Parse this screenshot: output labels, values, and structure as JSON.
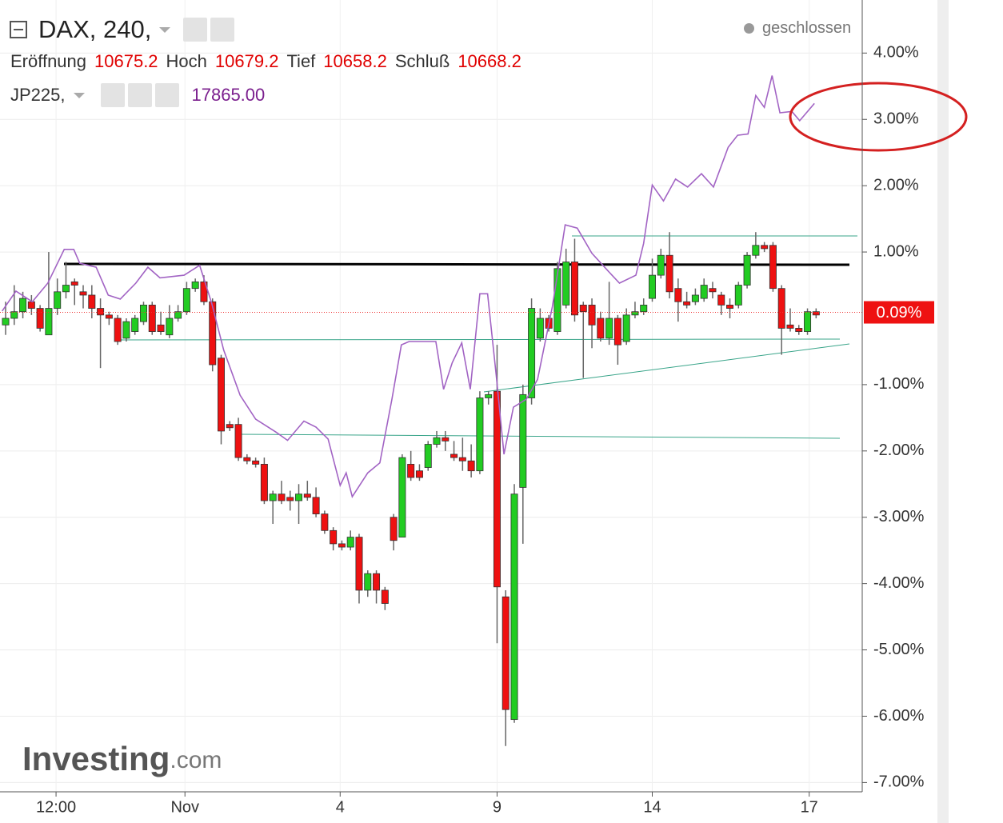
{
  "chart_data": {
    "type": "candlestick",
    "title": "DAX, 240,",
    "ohlc": [
      {
        "label": "Eröffnung",
        "value": 10675.2
      },
      {
        "label": "Hoch",
        "value": 10679.2
      },
      {
        "label": "Tief",
        "value": 10658.2
      },
      {
        "label": "Schluß",
        "value": 10668.2
      }
    ],
    "compare_value": {
      "value": 17865,
      "label": "17865.00"
    },
    "status": "geschlossen",
    "watermark": {
      "brand": "Investing",
      "suffix": ".com"
    },
    "last": {
      "value": 0.09,
      "label": "0.09%"
    },
    "grid": true,
    "ylim": [
      -7.14,
      4.8
    ],
    "yticks": [
      {
        "value": 4,
        "label": "4.00%"
      },
      {
        "value": 3,
        "label": "3.00%"
      },
      {
        "value": 2,
        "label": "2.00%"
      },
      {
        "value": 1,
        "label": "1.00%"
      },
      {
        "value": -1,
        "label": "-1.00%"
      },
      {
        "value": -2,
        "label": "-2.00%"
      },
      {
        "value": -3,
        "label": "-3.00%"
      },
      {
        "value": -4,
        "label": "-4.00%"
      },
      {
        "value": -5,
        "label": "-5.00%"
      },
      {
        "value": -6,
        "label": "-6.00%"
      },
      {
        "value": -7,
        "label": "-7.00%"
      }
    ],
    "xlim": [
      -0.65,
      99.35
    ],
    "xticks": [
      {
        "value": 5.85,
        "label": "12:00"
      },
      {
        "value": 20.8,
        "label": "Nov"
      },
      {
        "value": 38.8,
        "label": "4"
      },
      {
        "value": 57,
        "label": "9"
      },
      {
        "value": 75,
        "label": "14"
      },
      {
        "value": 93.2,
        "label": "17"
      }
    ],
    "series": [
      {
        "color_up": "#22cc22",
        "color_down": "#ee1111",
        "open": [
          -0.1,
          0.0,
          0.1,
          0.25,
          0.15,
          -0.25,
          0.15,
          0.4,
          0.55,
          0.4,
          0.35,
          0.15,
          0.05,
          0.0,
          -0.3,
          -0.2,
          -0.05,
          0.2,
          -0.1,
          -0.25,
          0.0,
          0.1,
          0.45,
          0.55,
          0.25,
          -0.6,
          -1.6,
          -1.6,
          -2.1,
          -2.15,
          -2.2,
          -2.75,
          -2.65,
          -2.7,
          -2.75,
          -2.65,
          -2.7,
          -2.95,
          -3.2,
          -3.4,
          -3.45,
          -3.3,
          -4.1,
          -3.85,
          -4.1,
          -3.0,
          -3.3,
          -2.2,
          -2.3,
          -2.25,
          -1.9,
          -1.8,
          -2.05,
          -2.1,
          -2.15,
          -2.3,
          -1.2,
          -1.1,
          -4.2,
          -6.05,
          -2.55,
          -1.2,
          -0.3,
          0.0,
          -0.2,
          0.2,
          0.85,
          0.2,
          0.2,
          0.0,
          -0.3,
          0.0,
          -0.35,
          0.05,
          0.1,
          0.3,
          0.65,
          0.95,
          0.45,
          0.25,
          0.25,
          0.3,
          0.45,
          0.35,
          0.2,
          0.2,
          0.5,
          0.95,
          1.1,
          1.1,
          0.45,
          -0.1,
          -0.15,
          -0.2,
          0.1
        ],
        "high": [
          0.25,
          0.5,
          0.4,
          0.35,
          0.2,
          1.0,
          0.6,
          0.85,
          0.6,
          0.5,
          0.5,
          0.3,
          0.1,
          0.05,
          0.0,
          0.05,
          0.25,
          0.25,
          0.1,
          0.2,
          0.2,
          0.55,
          0.6,
          0.65,
          0.3,
          -0.55,
          -1.55,
          -1.5,
          -2.05,
          -2.1,
          -2.1,
          -2.6,
          -2.45,
          -2.6,
          -2.5,
          -2.45,
          -2.55,
          -2.9,
          -3.15,
          -3.35,
          -3.2,
          -3.25,
          -3.8,
          -3.8,
          -4.05,
          -2.95,
          -2.05,
          -2.0,
          -2.2,
          -1.85,
          -1.7,
          -1.7,
          -1.85,
          -1.8,
          -1.9,
          -1.1,
          -1.1,
          -0.4,
          -4.1,
          -2.5,
          -1.0,
          0.3,
          0.15,
          0.05,
          0.85,
          1.05,
          1.2,
          0.25,
          0.3,
          0.1,
          0.55,
          0.05,
          0.15,
          0.25,
          0.3,
          0.9,
          1.05,
          1.3,
          0.6,
          0.4,
          0.45,
          0.6,
          0.55,
          0.4,
          0.3,
          0.55,
          1.0,
          1.3,
          1.15,
          1.15,
          0.5,
          0.15,
          -0.1,
          0.15,
          0.15
        ],
        "low": [
          -0.25,
          -0.1,
          0.0,
          0.05,
          -0.2,
          -0.25,
          0.05,
          0.3,
          0.2,
          0.15,
          0.0,
          -0.75,
          -0.1,
          -0.4,
          -0.35,
          -0.25,
          -0.1,
          -0.25,
          -0.25,
          -0.3,
          -0.05,
          0.05,
          0.4,
          0.2,
          -0.8,
          -1.9,
          -1.7,
          -2.15,
          -2.2,
          -2.25,
          -2.8,
          -3.1,
          -2.8,
          -2.9,
          -3.1,
          -2.75,
          -3.0,
          -3.25,
          -3.5,
          -3.5,
          -3.5,
          -4.3,
          -4.2,
          -4.3,
          -4.4,
          -3.5,
          -3.3,
          -2.45,
          -2.45,
          -2.3,
          -1.95,
          -2.0,
          -2.15,
          -2.3,
          -2.4,
          -2.35,
          -1.3,
          -4.9,
          -6.45,
          -6.1,
          -3.4,
          -1.3,
          -0.35,
          -0.2,
          -0.25,
          0.15,
          -0.05,
          -0.9,
          -0.45,
          -0.35,
          -0.4,
          -0.7,
          -0.4,
          0.0,
          0.05,
          0.25,
          0.6,
          0.3,
          -0.05,
          0.15,
          0.2,
          0.25,
          0.3,
          0.05,
          0.0,
          0.15,
          0.45,
          0.9,
          1.0,
          0.4,
          -0.55,
          -0.2,
          -0.25,
          -0.25,
          0.0
        ],
        "close": [
          0.0,
          0.1,
          0.3,
          0.15,
          -0.15,
          0.15,
          0.4,
          0.5,
          0.5,
          0.35,
          0.15,
          0.05,
          0.0,
          -0.35,
          -0.05,
          0.0,
          0.2,
          -0.2,
          -0.2,
          0.0,
          0.1,
          0.45,
          0.55,
          0.25,
          -0.7,
          -1.7,
          -1.65,
          -2.1,
          -2.15,
          -2.2,
          -2.75,
          -2.65,
          -2.75,
          -2.75,
          -2.65,
          -2.7,
          -2.95,
          -3.2,
          -3.4,
          -3.45,
          -3.3,
          -4.1,
          -3.85,
          -4.1,
          -4.3,
          -3.35,
          -2.1,
          -2.4,
          -2.4,
          -1.9,
          -1.8,
          -1.85,
          -2.1,
          -2.15,
          -2.3,
          -1.2,
          -1.15,
          -4.05,
          -5.9,
          -2.65,
          -1.15,
          0.15,
          0.0,
          -0.15,
          0.75,
          0.85,
          0.05,
          0.1,
          -0.1,
          -0.3,
          0.0,
          -0.4,
          0.05,
          0.1,
          0.2,
          0.65,
          0.95,
          0.4,
          0.25,
          0.2,
          0.35,
          0.5,
          0.4,
          0.2,
          0.15,
          0.5,
          0.95,
          1.1,
          1.05,
          0.45,
          -0.15,
          -0.15,
          -0.2,
          0.1,
          0.05
        ]
      },
      {
        "name": "JP225,",
        "type": "line",
        "color": "#a264c4",
        "x": [
          -0.4,
          1.2,
          3.1,
          4.9,
          6.8,
          7.9,
          8.6,
          10.5,
          11.9,
          13.3,
          15.1,
          16.5,
          17.9,
          20.7,
          22.5,
          23.9,
          25.3,
          27.2,
          29.0,
          31.4,
          32.7,
          34.6,
          36.0,
          37.4,
          38.8,
          39.5,
          40.2,
          42.0,
          43.4,
          44.8,
          45.9,
          46.8,
          49.9,
          50.8,
          51.8,
          52.9,
          53.9,
          55.0,
          55.9,
          56.9,
          57.8,
          58.9,
          60.4,
          61.7,
          63.4,
          64.9,
          66.3,
          68.0,
          69.9,
          71.2,
          73.1,
          74.0,
          75.0,
          76.3,
          77.7,
          79.1,
          80.7,
          82.1,
          83.8,
          84.9,
          86.1,
          87.0,
          88.0,
          88.9,
          89.8,
          91.2,
          92.1,
          93.8
        ],
        "values": [
          0.11,
          0.41,
          0.25,
          0.53,
          1.04,
          1.04,
          0.83,
          0.77,
          0.35,
          0.29,
          0.53,
          0.77,
          0.61,
          0.65,
          0.8,
          0.23,
          -0.48,
          -1.16,
          -1.52,
          -1.72,
          -1.84,
          -1.55,
          -1.64,
          -1.82,
          -2.52,
          -2.33,
          -2.69,
          -2.33,
          -2.18,
          -1.22,
          -0.4,
          -0.35,
          -0.35,
          -1.07,
          -0.67,
          -0.37,
          -1.07,
          0.37,
          0.37,
          -0.86,
          -2.05,
          -1.34,
          -1.22,
          -0.92,
          0.17,
          1.41,
          1.36,
          0.98,
          0.71,
          0.53,
          0.65,
          1.13,
          2.01,
          1.77,
          2.1,
          1.98,
          2.18,
          1.98,
          2.58,
          2.76,
          2.78,
          3.36,
          3.18,
          3.66,
          3.1,
          3.12,
          2.98,
          3.24
        ]
      }
    ]
  }
}
